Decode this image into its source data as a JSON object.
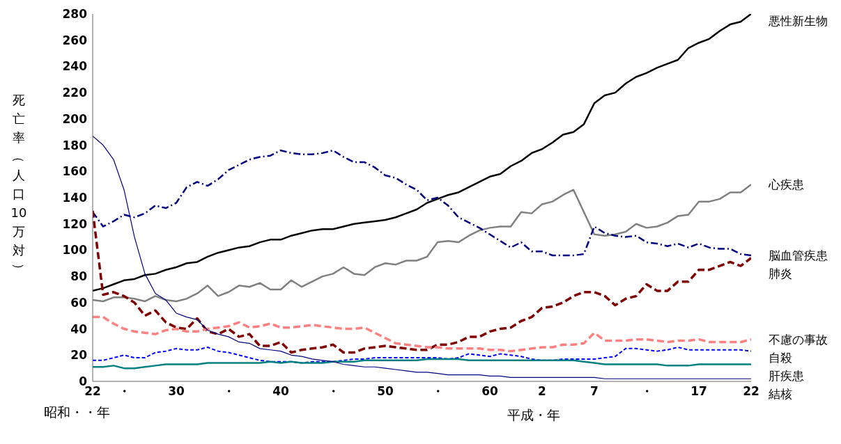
{
  "chart_data": {
    "type": "line",
    "ylabel": "死亡率（人口10万対）",
    "xlabel": "昭和・・年",
    "annotations": [
      "平成・年"
    ],
    "categories": [
      "22",
      null,
      null,
      "・",
      null,
      null,
      null,
      null,
      "30",
      null,
      null,
      null,
      null,
      "・",
      null,
      null,
      null,
      null,
      "40",
      null,
      null,
      null,
      null,
      "・",
      null,
      null,
      null,
      null,
      "50",
      null,
      null,
      null,
      null,
      "・",
      null,
      null,
      null,
      null,
      "60",
      null,
      null,
      null,
      null,
      "2",
      null,
      null,
      null,
      null,
      "7",
      null,
      null,
      null,
      null,
      "・",
      null,
      null,
      null,
      null,
      "17",
      null,
      null,
      null,
      null,
      "22"
    ],
    "ylim": [
      0,
      280
    ],
    "yticks": [
      0,
      20,
      40,
      60,
      80,
      100,
      120,
      140,
      160,
      180,
      200,
      220,
      240,
      260,
      280
    ],
    "grid": false,
    "legend": false,
    "marker": "none",
    "series": [
      {
        "name": "悪性新生物",
        "color": "#000000",
        "line_style": "solid",
        "values": [
          69,
          71,
          74,
          77,
          78,
          81,
          82,
          85,
          87,
          90,
          91,
          95,
          98,
          100,
          102,
          103,
          106,
          108,
          108,
          111,
          113,
          115,
          116,
          116,
          118,
          120,
          121,
          122,
          123,
          125,
          128,
          131,
          136,
          139,
          142,
          144,
          148,
          152,
          156,
          158,
          164,
          168,
          174,
          177,
          182,
          188,
          190,
          196,
          212,
          218,
          220,
          227,
          232,
          235,
          239,
          242,
          245,
          254,
          258,
          261,
          267,
          272,
          274,
          280
        ]
      },
      {
        "name": "心疾患",
        "color": "#808080",
        "line_style": "solid",
        "values": [
          62,
          61,
          64,
          64,
          63,
          61,
          65,
          62,
          61,
          63,
          67,
          73,
          65,
          68,
          73,
          72,
          75,
          70,
          70,
          77,
          72,
          76,
          80,
          82,
          87,
          82,
          81,
          87,
          90,
          89,
          92,
          92,
          95,
          106,
          107,
          106,
          111,
          115,
          117,
          118,
          118,
          129,
          128,
          135,
          137,
          142,
          146,
          129,
          112,
          111,
          112,
          114,
          120,
          117,
          118,
          121,
          126,
          127,
          137,
          137,
          139,
          144,
          144,
          150
        ]
      },
      {
        "name": "脳血管疾患",
        "color": "#000080",
        "line_style": "dashed",
        "values": [
          129,
          118,
          122,
          127,
          125,
          128,
          134,
          132,
          136,
          148,
          152,
          149,
          154,
          161,
          165,
          169,
          171,
          172,
          176,
          174,
          173,
          173,
          174,
          176,
          171,
          167,
          167,
          163,
          157,
          155,
          150,
          146,
          138,
          140,
          134,
          125,
          121,
          117,
          112,
          107,
          102,
          106,
          99,
          99,
          96,
          96,
          96,
          97,
          118,
          113,
          111,
          110,
          111,
          106,
          105,
          103,
          105,
          102,
          105,
          102,
          101,
          101,
          97,
          96
        ]
      },
      {
        "name": "肺炎",
        "color": "#800000",
        "line_style": "dashed",
        "values": [
          130,
          66,
          68,
          65,
          60,
          50,
          54,
          45,
          41,
          40,
          48,
          38,
          36,
          40,
          34,
          36,
          27,
          27,
          30,
          22,
          24,
          25,
          26,
          28,
          22,
          22,
          25,
          26,
          27,
          26,
          25,
          24,
          24,
          28,
          28,
          30,
          34,
          34,
          38,
          40,
          41,
          46,
          49,
          56,
          57,
          60,
          65,
          68,
          68,
          65,
          58,
          63,
          65,
          74,
          69,
          69,
          76,
          76,
          85,
          85,
          88,
          91,
          88,
          94
        ]
      },
      {
        "name": "不慮の事故",
        "color": "#ff8080",
        "line_style": "dashed",
        "values": [
          49,
          49,
          44,
          40,
          38,
          37,
          36,
          39,
          40,
          38,
          38,
          40,
          41,
          42,
          45,
          41,
          42,
          44,
          41,
          41,
          42,
          43,
          42,
          41,
          40,
          40,
          41,
          37,
          33,
          29,
          28,
          27,
          26,
          26,
          25,
          25,
          25,
          25,
          24,
          24,
          23,
          24,
          25,
          26,
          26,
          28,
          28,
          29,
          37,
          31,
          31,
          31,
          32,
          32,
          31,
          30,
          31,
          31,
          32,
          30,
          30,
          30,
          30,
          32
        ]
      },
      {
        "name": "自殺",
        "color": "#0000ff",
        "line_style": "dashed",
        "values": [
          16,
          16,
          18,
          20,
          18,
          18,
          22,
          23,
          25,
          24,
          24,
          26,
          23,
          22,
          20,
          18,
          16,
          15,
          15,
          15,
          14,
          15,
          15,
          15,
          16,
          17,
          17,
          18,
          18,
          18,
          18,
          18,
          18,
          18,
          17,
          18,
          21,
          20,
          19,
          21,
          20,
          19,
          17,
          16,
          16,
          17,
          17,
          17,
          17,
          18,
          19,
          25,
          25,
          24,
          23,
          24,
          26,
          24,
          24,
          24,
          24,
          24,
          24,
          23
        ]
      },
      {
        "name": "肝疾患",
        "color": "#008080",
        "line_style": "solid",
        "values": [
          11,
          11,
          12,
          10,
          10,
          11,
          12,
          13,
          13,
          13,
          13,
          14,
          14,
          14,
          14,
          14,
          14,
          15,
          14,
          15,
          14,
          14,
          14,
          15,
          15,
          15,
          16,
          16,
          16,
          16,
          16,
          16,
          17,
          17,
          17,
          17,
          16,
          16,
          16,
          16,
          16,
          16,
          16,
          16,
          16,
          16,
          16,
          15,
          14,
          13,
          13,
          13,
          13,
          13,
          13,
          12,
          12,
          12,
          13,
          13,
          13,
          13,
          13,
          13
        ]
      },
      {
        "name": "結核",
        "color": "#000080",
        "line_style": "solid",
        "values": [
          187,
          180,
          169,
          146,
          110,
          82,
          67,
          62,
          52,
          49,
          47,
          39,
          36,
          34,
          30,
          29,
          25,
          24,
          23,
          20,
          19,
          17,
          16,
          15,
          13,
          12,
          11,
          11,
          10,
          9,
          8,
          7,
          7,
          6,
          5,
          5,
          5,
          5,
          4,
          4,
          3,
          3,
          3,
          3,
          3,
          3,
          3,
          3,
          3,
          2,
          2,
          2,
          2,
          2,
          2,
          2,
          2,
          2,
          2,
          2,
          2,
          2,
          2,
          2
        ]
      }
    ]
  }
}
